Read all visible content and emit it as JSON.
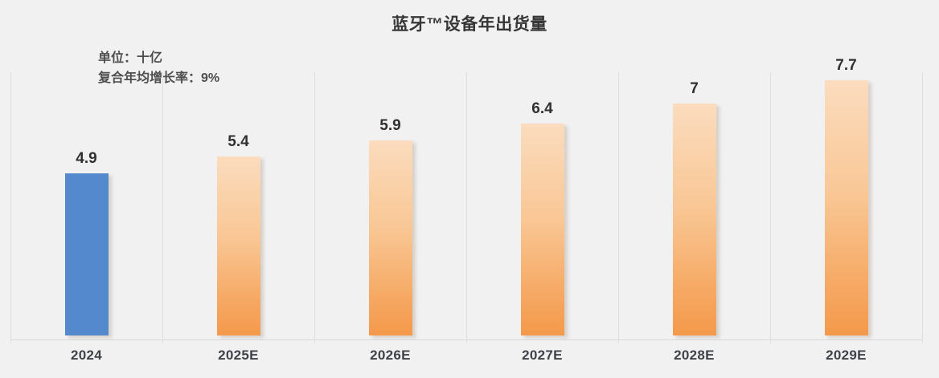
{
  "chart": {
    "title": "蓝牙™设备年出货量",
    "unit_label": "单位：十亿",
    "cagr_label": "复合年均增长率：9%"
  },
  "chart_data": {
    "type": "bar",
    "title": "蓝牙™设备年出货量",
    "subtitle_lines": [
      "单位：十亿",
      "复合年均增长率：9%"
    ],
    "categories": [
      "2024",
      "2025E",
      "2026E",
      "2027E",
      "2028E",
      "2029E"
    ],
    "values": [
      4.9,
      5.4,
      5.9,
      6.4,
      7,
      7.7
    ],
    "value_labels": [
      "4.9",
      "5.4",
      "5.9",
      "6.4",
      "7",
      "7.7"
    ],
    "ylabel": "",
    "xlabel": "",
    "ylim": [
      0,
      8
    ],
    "grid": "vertical-category-boundaries",
    "legend": "none",
    "colors": {
      "background": "#f1f1f2",
      "bar_actual": "#5589ce",
      "bar_forecast_gradient_top": "#fbdcbe",
      "bar_forecast_gradient_bottom": "#f4994b",
      "gridline": "#dedede",
      "axis_line": "#d8d8d8",
      "title_text": "#363636",
      "subtitle_text": "#4e4e4e",
      "value_label_text": "#303030",
      "tick_label_text": "#3f4347"
    }
  }
}
